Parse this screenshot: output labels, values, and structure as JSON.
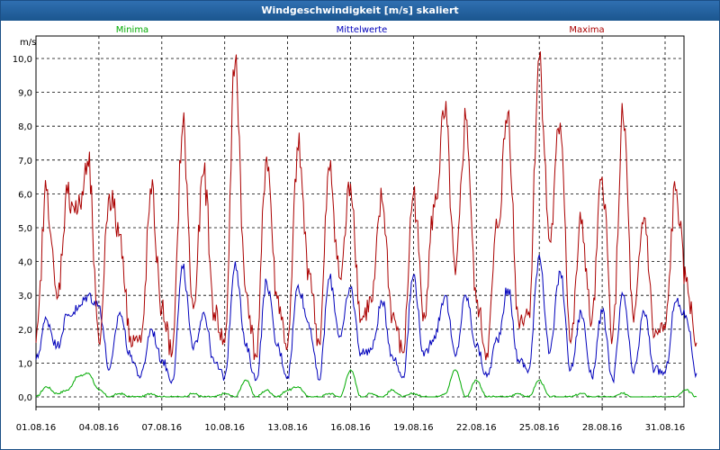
{
  "window": {
    "title": "Windgeschwindigkeit [m/s] skaliert"
  },
  "chart_data": {
    "type": "line",
    "title": "Windgeschwindigkeit [m/s] skaliert",
    "ylabel": "m/s",
    "xlabel": "",
    "ylim": [
      0,
      10.4
    ],
    "xlim": [
      0,
      31.9
    ],
    "grid": true,
    "y_ticks": [
      "0,0",
      "1,0",
      "2,0",
      "3,0",
      "4,0",
      "5,0",
      "6,0",
      "7,0",
      "8,0",
      "9,0",
      "10,0"
    ],
    "x_ticks": [
      {
        "day": 0,
        "label": "01.08.16"
      },
      {
        "day": 3,
        "label": "04.08.16"
      },
      {
        "day": 6,
        "label": "07.08.16"
      },
      {
        "day": 9,
        "label": "10.08.16"
      },
      {
        "day": 12,
        "label": "13.08.16"
      },
      {
        "day": 15,
        "label": "16.08.16"
      },
      {
        "day": 18,
        "label": "19.08.16"
      },
      {
        "day": 21,
        "label": "22.08.16"
      },
      {
        "day": 24,
        "label": "25.08.16"
      },
      {
        "day": 27,
        "label": "28.08.16"
      },
      {
        "day": 30,
        "label": "31.08.16"
      }
    ],
    "x_unit": "day offset from 01.08.16 (half-day resolution)",
    "series": [
      {
        "name": "Minima",
        "color": "#00aa00",
        "x": [
          0,
          0.5,
          1,
          1.5,
          2,
          2.5,
          3,
          3.5,
          4,
          4.5,
          5,
          5.5,
          6,
          6.5,
          7,
          7.5,
          8,
          8.5,
          9,
          9.5,
          10,
          10.5,
          11,
          11.5,
          12,
          12.5,
          13,
          13.5,
          14,
          14.5,
          15,
          15.5,
          16,
          16.5,
          17,
          17.5,
          18,
          18.5,
          19,
          19.5,
          20,
          20.5,
          21,
          21.5,
          22,
          22.5,
          23,
          23.5,
          24,
          24.5,
          25,
          25.5,
          26,
          26.5,
          27,
          27.5,
          28,
          28.5,
          29,
          29.5,
          30,
          30.5,
          31,
          31.5
        ],
        "values": [
          0,
          0.3,
          0.1,
          0.2,
          0.6,
          0.7,
          0.2,
          0,
          0.1,
          0,
          0,
          0.1,
          0,
          0,
          0,
          0.1,
          0,
          0,
          0.1,
          0,
          0.5,
          0,
          0.2,
          0,
          0.2,
          0.3,
          0,
          0,
          0.1,
          0,
          0.8,
          0,
          0.1,
          0,
          0.2,
          0,
          0.1,
          0,
          0,
          0.1,
          0.8,
          0,
          0.5,
          0,
          0,
          0,
          0.1,
          0,
          0.5,
          0,
          0,
          0,
          0.1,
          0,
          0,
          0,
          0.1,
          0,
          0,
          0,
          0,
          0,
          0.2,
          0
        ]
      },
      {
        "name": "Mittelwerte",
        "color": "#0000bb",
        "x": [
          0,
          0.5,
          1,
          1.5,
          2,
          2.5,
          3,
          3.5,
          4,
          4.5,
          5,
          5.5,
          6,
          6.5,
          7,
          7.5,
          8,
          8.5,
          9,
          9.5,
          10,
          10.5,
          11,
          11.5,
          12,
          12.5,
          13,
          13.5,
          14,
          14.5,
          15,
          15.5,
          16,
          16.5,
          17,
          17.5,
          18,
          18.5,
          19,
          19.5,
          20,
          20.5,
          21,
          21.5,
          22,
          22.5,
          23,
          23.5,
          24,
          24.5,
          25,
          25.5,
          26,
          26.5,
          27,
          27.5,
          28,
          28.5,
          29,
          29.5,
          30,
          30.5,
          31,
          31.5
        ],
        "values": [
          1.1,
          2.3,
          1.5,
          2.4,
          2.6,
          3.0,
          2.7,
          0.8,
          2.5,
          1.2,
          0.6,
          2.0,
          1.1,
          0.5,
          3.8,
          1.4,
          2.5,
          1.0,
          0.6,
          4.0,
          1.5,
          0.5,
          3.4,
          1.5,
          0.6,
          3.3,
          2.2,
          0.5,
          3.5,
          1.8,
          3.2,
          1.3,
          1.4,
          2.8,
          1.2,
          0.6,
          3.6,
          1.2,
          1.8,
          3.0,
          1.2,
          3.0,
          1.5,
          0.6,
          1.7,
          3.2,
          1.1,
          0.8,
          4.2,
          1.3,
          3.7,
          0.8,
          2.5,
          0.6,
          2.5,
          0.5,
          3.0,
          0.7,
          2.5,
          0.8,
          0.7,
          2.8,
          2.4,
          0.7
        ]
      },
      {
        "name": "Maxima",
        "color": "#aa0000",
        "x": [
          0,
          0.5,
          1,
          1.5,
          2,
          2.5,
          3,
          3.5,
          4,
          4.5,
          5,
          5.5,
          6,
          6.5,
          7,
          7.5,
          8,
          8.5,
          9,
          9.5,
          10,
          10.5,
          11,
          11.5,
          12,
          12.5,
          13,
          13.5,
          14,
          14.5,
          15,
          15.5,
          16,
          16.5,
          17,
          17.5,
          18,
          18.5,
          19,
          19.5,
          20,
          20.5,
          21,
          21.5,
          22,
          22.5,
          23,
          23.5,
          24,
          24.5,
          25,
          25.5,
          26,
          26.5,
          27,
          27.5,
          28,
          28.5,
          29,
          29.5,
          30,
          30.5,
          31,
          31.5
        ],
        "values": [
          1.6,
          6.1,
          2.9,
          6.0,
          5.5,
          6.8,
          1.6,
          6.0,
          4.8,
          1.8,
          1.6,
          6.0,
          2.6,
          1.3,
          8.0,
          2.6,
          6.6,
          2.5,
          1.6,
          9.9,
          3.1,
          1.2,
          7.1,
          2.9,
          1.5,
          7.3,
          3.8,
          1.6,
          6.7,
          3.5,
          6.3,
          2.3,
          2.8,
          5.8,
          2.4,
          1.3,
          6.0,
          2.5,
          5.6,
          8.3,
          3.6,
          8.2,
          2.8,
          1.3,
          5.0,
          8.4,
          2.3,
          2.5,
          10.0,
          4.6,
          8.1,
          1.6,
          5.1,
          2.2,
          6.5,
          1.8,
          8.2,
          2.2,
          5.3,
          1.8,
          2.0,
          6.1,
          3.4,
          1.6
        ]
      }
    ]
  }
}
